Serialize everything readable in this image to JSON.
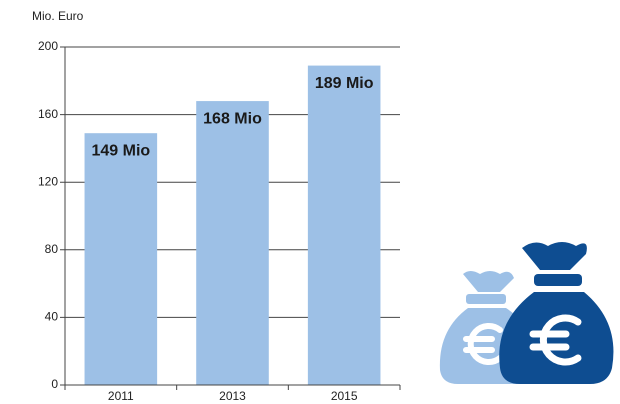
{
  "chart_data": {
    "type": "bar",
    "y_label": "Mio. Euro",
    "categories": [
      "2011",
      "2013",
      "2015"
    ],
    "values": [
      149,
      168,
      189
    ],
    "value_labels": [
      "149 Mio",
      "168 Mio",
      "189 Mio"
    ],
    "color": "#9dc0e6",
    "ylim": [
      0,
      200
    ],
    "yticks": [
      0,
      40,
      80,
      120,
      160,
      200
    ],
    "grid": true
  }
}
